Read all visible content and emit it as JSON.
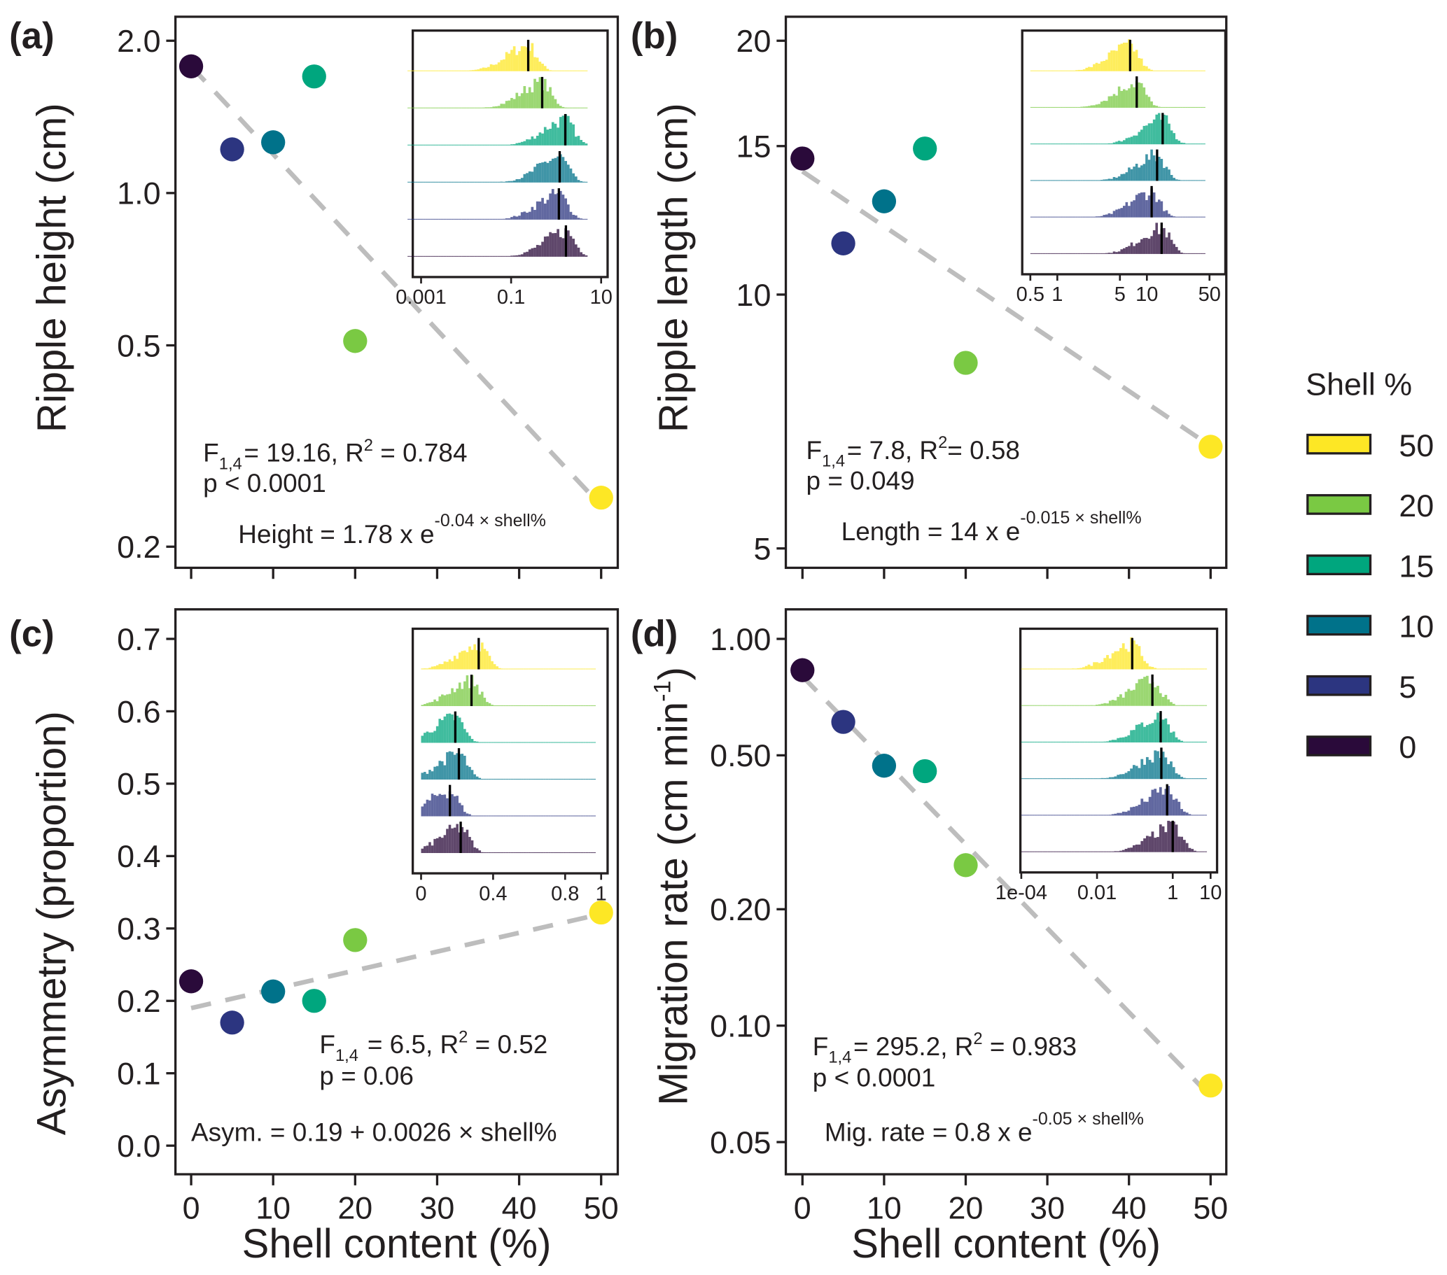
{
  "legend": {
    "title": "Shell %",
    "levels": [
      "50",
      "20",
      "15",
      "10",
      "5",
      "0"
    ],
    "colors": {
      "50": "#fde725",
      "20": "#7ac943",
      "15": "#00a67e",
      "10": "#00728a",
      "5": "#2c3580",
      "0": "#2a0a3a"
    }
  },
  "xlabel": "Shell content (%)",
  "chart_data": [
    {
      "type": "scatter",
      "tag": "(a)",
      "ylabel": "Ripple height (cm)",
      "ylog": true,
      "yticks": [
        "2.0",
        "1.0",
        "0.5",
        "0.2"
      ],
      "ytick_values": [
        2.0,
        1.0,
        0.5,
        0.2
      ],
      "xticks": [
        "0",
        "10",
        "20",
        "30",
        "40",
        "50"
      ],
      "xtick_values": [
        0,
        10,
        20,
        30,
        40,
        50
      ],
      "show_xtick_labels": false,
      "x": [
        0,
        5,
        10,
        15,
        20,
        50
      ],
      "y": [
        1.78,
        1.22,
        1.26,
        1.7,
        0.51,
        0.25
      ],
      "fit": {
        "type": "exp",
        "a": 1.78,
        "b": -0.04
      },
      "ann": {
        "f": "F",
        "df": "1,4",
        "stat": "= 19.16, R",
        "r2sup": "2",
        "r2": " = 0.784",
        "p": "p < 0.0001",
        "eq": "Height = 1.78 x e",
        "eqsup": "-0.04 × shell%"
      },
      "inset": {
        "xlog": true,
        "xticks": [
          "0.001",
          "0.1",
          "10"
        ],
        "xtick_values": [
          0.001,
          0.1,
          10
        ],
        "range": [
          0.0005,
          5
        ],
        "medians": {
          "50": 0.24,
          "20": 0.49,
          "15": 1.6,
          "10": 1.2,
          "5": 1.15,
          "0": 1.65
        }
      }
    },
    {
      "type": "scatter",
      "tag": "(b)",
      "ylabel": "Ripple length (cm)",
      "ylog": true,
      "yticks": [
        "20",
        "15",
        "10",
        "5"
      ],
      "ytick_values": [
        20,
        15,
        10,
        5
      ],
      "xticks": [
        "0",
        "10",
        "20",
        "30",
        "40",
        "50"
      ],
      "xtick_values": [
        0,
        10,
        20,
        30,
        40,
        50
      ],
      "show_xtick_labels": false,
      "x": [
        0,
        5,
        10,
        15,
        20,
        50
      ],
      "y": [
        14.5,
        11.5,
        12.9,
        14.9,
        8.3,
        6.6
      ],
      "fit": {
        "type": "exp",
        "a": 14,
        "b": -0.015
      },
      "ann": {
        "f": "F",
        "df": "1,4",
        "stat": "= 7.8, R",
        "r2sup": "2",
        "r2": "= 0.58",
        "p": "p = 0.049",
        "eq": "Length = 14 x e",
        "eqsup": "-0.015 × shell%"
      },
      "inset": {
        "xlog": true,
        "xticks": [
          "0.5",
          "1",
          "5",
          "10",
          "50"
        ],
        "xtick_values": [
          0.5,
          1,
          5,
          10,
          50
        ],
        "range": [
          0.5,
          45
        ],
        "medians": {
          "50": 6.5,
          "20": 7.7,
          "15": 15,
          "10": 13,
          "5": 11.3,
          "0": 14.6
        }
      }
    },
    {
      "type": "scatter",
      "tag": "(c)",
      "ylabel": "Asymmetry (proportion)",
      "ylog": false,
      "yticks": [
        "0.7",
        "0.6",
        "0.5",
        "0.4",
        "0.3",
        "0.2",
        "0.1",
        "0.0"
      ],
      "ytick_values": [
        0.7,
        0.6,
        0.5,
        0.4,
        0.3,
        0.2,
        0.1,
        0.0
      ],
      "xticks": [
        "0",
        "10",
        "20",
        "30",
        "40",
        "50"
      ],
      "xtick_values": [
        0,
        10,
        20,
        30,
        40,
        50
      ],
      "show_xtick_labels": true,
      "x": [
        0,
        5,
        10,
        15,
        20,
        50
      ],
      "y": [
        0.227,
        0.17,
        0.213,
        0.2,
        0.284,
        0.322
      ],
      "fit": {
        "type": "linear",
        "a": 0.19,
        "b": 0.0026
      },
      "ann": {
        "f": "F",
        "df": "1,4",
        "stat": " = 6.5, R",
        "r2sup": "2",
        "r2": " = 0.52",
        "p": "p = 0.06",
        "eq": "Asym. = 0.19 + 0.0026 × shell%"
      },
      "inset": {
        "xlog": false,
        "xticks": [
          "0",
          "0.4",
          "0.8",
          "1"
        ],
        "xtick_values": [
          0,
          0.4,
          0.8,
          1
        ],
        "range": [
          0,
          0.97
        ],
        "medians": {
          "50": 0.32,
          "20": 0.28,
          "15": 0.19,
          "10": 0.21,
          "5": 0.16,
          "0": 0.22
        }
      }
    },
    {
      "type": "scatter",
      "tag": "(d)",
      "ylabel": "Migration rate (cm min",
      "ylabel_sup": "-1",
      "ylabel_end": ")",
      "ylog": true,
      "yticks": [
        "1.00",
        "0.50",
        "0.20",
        "0.10",
        "0.05"
      ],
      "ytick_values": [
        1.0,
        0.5,
        0.2,
        0.1,
        0.05
      ],
      "xticks": [
        "0",
        "10",
        "20",
        "30",
        "40",
        "50"
      ],
      "xtick_values": [
        0,
        10,
        20,
        30,
        40,
        50
      ],
      "show_xtick_labels": true,
      "x": [
        0,
        5,
        10,
        15,
        20,
        50
      ],
      "y": [
        0.83,
        0.61,
        0.47,
        0.455,
        0.26,
        0.07
      ],
      "fit": {
        "type": "exp",
        "a": 0.8,
        "b": -0.05
      },
      "ann": {
        "f": "F",
        "df": "1,4",
        "stat": "= 295.2, R",
        "r2sup": "2",
        "r2": " = 0.983",
        "p": "p < 0.0001",
        "eq": "Mig. rate = 0.8 x e",
        "eqsup": "-0.05 × shell%"
      },
      "inset": {
        "xlog": true,
        "xticks": [
          "1e-04",
          "0.01",
          "1",
          "10"
        ],
        "xtick_values": [
          0.0001,
          0.01,
          1,
          10
        ],
        "range": [
          0.0001,
          8
        ],
        "medians": {
          "50": 0.085,
          "20": 0.29,
          "15": 0.48,
          "10": 0.5,
          "5": 0.71,
          "0": 1.0
        }
      }
    }
  ]
}
